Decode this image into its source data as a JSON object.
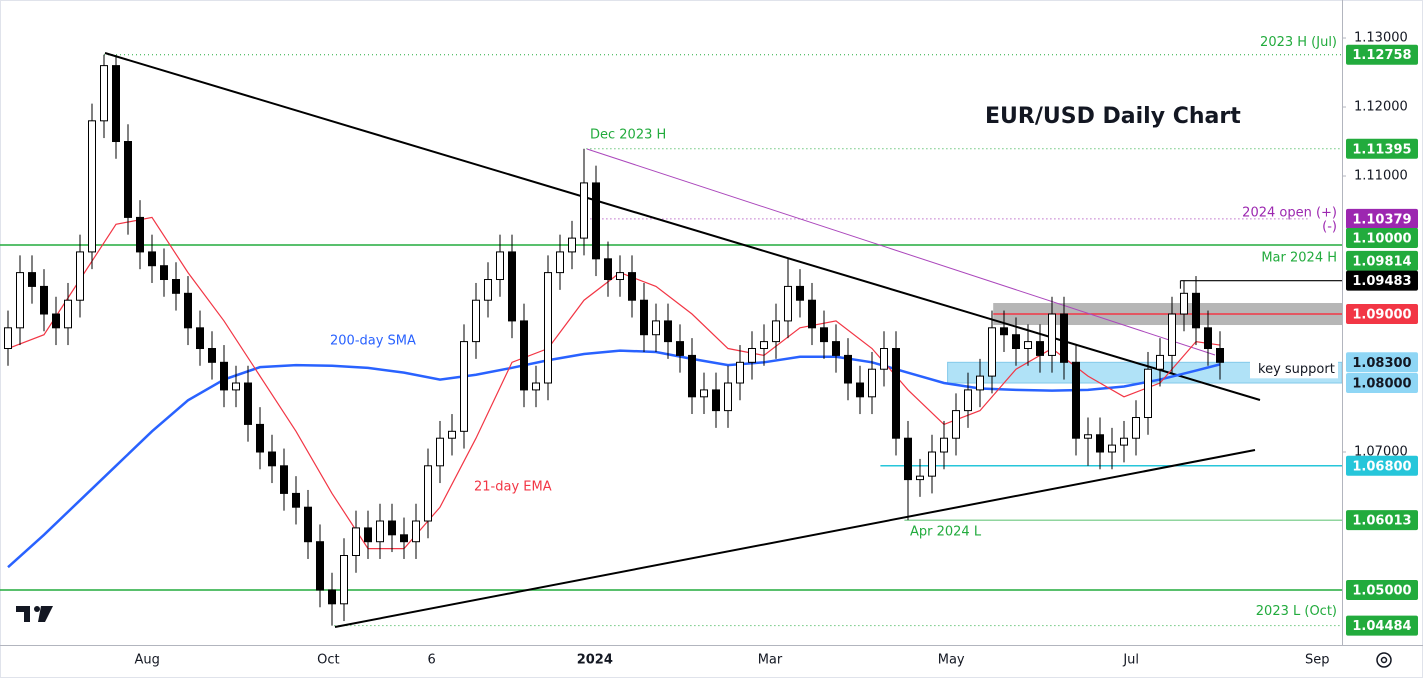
{
  "chart_data": {
    "type": "candlestick",
    "title": "EUR/USD Daily Chart",
    "xlim": [
      -0.6667,
      111.1667
    ],
    "ylim": [
      1.04203,
      1.13551
    ],
    "xticks": [
      {
        "value": 11.6,
        "label": "Aug"
      },
      {
        "value": 26.7,
        "label": "Oct"
      },
      {
        "value": 35.3,
        "label": "6"
      },
      {
        "value": 48.9,
        "label": "2024"
      },
      {
        "value": 63.5,
        "label": "Mar"
      },
      {
        "value": 78.6,
        "label": "May"
      },
      {
        "value": 93.6,
        "label": "Jul"
      },
      {
        "value": 109.1,
        "label": "Sep"
      }
    ],
    "yticks": [
      {
        "value": 1.13,
        "label": "1.13000"
      },
      {
        "value": 1.12,
        "label": "1.12000"
      },
      {
        "value": 1.11,
        "label": "1.11000"
      },
      {
        "value": 1.07,
        "label": "1.07000"
      }
    ],
    "ohlc": [
      [
        1.085,
        1.0905,
        1.0825,
        1.088
      ],
      [
        1.088,
        1.0985,
        1.0855,
        1.096
      ],
      [
        1.096,
        1.0985,
        1.0915,
        1.094
      ],
      [
        1.094,
        1.0965,
        1.0875,
        1.09
      ],
      [
        1.09,
        1.0925,
        1.0855,
        1.088
      ],
      [
        1.088,
        1.0945,
        1.0855,
        1.092
      ],
      [
        1.092,
        1.1015,
        1.0895,
        1.099
      ],
      [
        1.099,
        1.1205,
        1.0965,
        1.118
      ],
      [
        1.118,
        1.12758,
        1.1155,
        1.126
      ],
      [
        1.126,
        1.1275,
        1.1125,
        1.115
      ],
      [
        1.115,
        1.1175,
        1.1015,
        1.104
      ],
      [
        1.104,
        1.1065,
        1.0965,
        1.099
      ],
      [
        1.099,
        1.1015,
        1.0945,
        1.097
      ],
      [
        1.097,
        1.0995,
        1.0925,
        1.095
      ],
      [
        1.095,
        1.0975,
        1.0905,
        1.093
      ],
      [
        1.093,
        1.0955,
        1.0855,
        1.088
      ],
      [
        1.088,
        1.0905,
        1.0825,
        1.085
      ],
      [
        1.085,
        1.0875,
        1.0805,
        1.083
      ],
      [
        1.083,
        1.0855,
        1.0765,
        1.079
      ],
      [
        1.079,
        1.0825,
        1.0765,
        1.08
      ],
      [
        1.08,
        1.0825,
        1.0715,
        1.074
      ],
      [
        1.074,
        1.0765,
        1.0675,
        1.07
      ],
      [
        1.07,
        1.0725,
        1.0655,
        1.068
      ],
      [
        1.068,
        1.0705,
        1.0615,
        1.064
      ],
      [
        1.064,
        1.0665,
        1.0595,
        1.062
      ],
      [
        1.062,
        1.0645,
        1.0545,
        1.057
      ],
      [
        1.057,
        1.0595,
        1.0475,
        1.05
      ],
      [
        1.05,
        1.0525,
        1.04484,
        1.048
      ],
      [
        1.048,
        1.0575,
        1.0455,
        1.055
      ],
      [
        1.055,
        1.0615,
        1.0525,
        1.059
      ],
      [
        1.059,
        1.0615,
        1.0545,
        1.057
      ],
      [
        1.057,
        1.0625,
        1.0545,
        1.06
      ],
      [
        1.06,
        1.0625,
        1.0555,
        1.058
      ],
      [
        1.058,
        1.0605,
        1.0545,
        1.057
      ],
      [
        1.057,
        1.0625,
        1.0545,
        1.06
      ],
      [
        1.06,
        1.0705,
        1.0575,
        1.068
      ],
      [
        1.068,
        1.0745,
        1.0655,
        1.072
      ],
      [
        1.072,
        1.0755,
        1.0695,
        1.073
      ],
      [
        1.073,
        1.0885,
        1.0705,
        1.086
      ],
      [
        1.086,
        1.0945,
        1.0835,
        1.092
      ],
      [
        1.092,
        1.0975,
        1.0895,
        1.095
      ],
      [
        1.095,
        1.1015,
        1.0925,
        1.099
      ],
      [
        1.099,
        1.1015,
        1.0865,
        1.089
      ],
      [
        1.089,
        1.0915,
        1.0765,
        1.079
      ],
      [
        1.079,
        1.0825,
        1.0765,
        1.08
      ],
      [
        1.08,
        1.0985,
        1.0775,
        1.096
      ],
      [
        1.096,
        1.1015,
        1.0935,
        1.099
      ],
      [
        1.099,
        1.1035,
        1.0965,
        1.101
      ],
      [
        1.101,
        1.11395,
        1.0985,
        1.109
      ],
      [
        1.109,
        1.1115,
        1.0955,
        1.098
      ],
      [
        1.098,
        1.1005,
        1.0925,
        1.095
      ],
      [
        1.095,
        1.0985,
        1.0925,
        1.096
      ],
      [
        1.096,
        1.0985,
        1.0895,
        1.092
      ],
      [
        1.092,
        1.0945,
        1.0845,
        1.087
      ],
      [
        1.087,
        1.0915,
        1.0845,
        1.089
      ],
      [
        1.089,
        1.0915,
        1.0835,
        1.086
      ],
      [
        1.086,
        1.0885,
        1.0815,
        1.084
      ],
      [
        1.084,
        1.0865,
        1.0755,
        1.078
      ],
      [
        1.078,
        1.0815,
        1.0755,
        1.079
      ],
      [
        1.079,
        1.0815,
        1.0735,
        1.076
      ],
      [
        1.076,
        1.0825,
        1.0735,
        1.08
      ],
      [
        1.08,
        1.0855,
        1.0775,
        1.083
      ],
      [
        1.083,
        1.0875,
        1.0805,
        1.085
      ],
      [
        1.085,
        1.0885,
        1.0825,
        1.086
      ],
      [
        1.086,
        1.0915,
        1.0835,
        1.089
      ],
      [
        1.089,
        1.09814,
        1.0865,
        1.094
      ],
      [
        1.094,
        1.0965,
        1.0895,
        1.092
      ],
      [
        1.092,
        1.0945,
        1.0855,
        1.088
      ],
      [
        1.088,
        1.0905,
        1.0835,
        1.086
      ],
      [
        1.086,
        1.0885,
        1.0815,
        1.084
      ],
      [
        1.084,
        1.0865,
        1.0775,
        1.08
      ],
      [
        1.08,
        1.0825,
        1.0755,
        1.078
      ],
      [
        1.078,
        1.0845,
        1.0755,
        1.082
      ],
      [
        1.082,
        1.0875,
        1.0795,
        1.085
      ],
      [
        1.085,
        1.0875,
        1.0695,
        1.072
      ],
      [
        1.072,
        1.0745,
        1.06013,
        1.066
      ],
      [
        1.066,
        1.069,
        1.0635,
        1.0665
      ],
      [
        1.0665,
        1.0725,
        1.064,
        1.07
      ],
      [
        1.07,
        1.0745,
        1.0675,
        1.072
      ],
      [
        1.072,
        1.0785,
        1.0695,
        1.076
      ],
      [
        1.076,
        1.0815,
        1.0735,
        1.079
      ],
      [
        1.079,
        1.0835,
        1.0765,
        1.081
      ],
      [
        1.081,
        1.0905,
        1.0785,
        1.088
      ],
      [
        1.088,
        1.0905,
        1.0845,
        1.087
      ],
      [
        1.087,
        1.0895,
        1.0825,
        1.085
      ],
      [
        1.085,
        1.0885,
        1.0825,
        1.086
      ],
      [
        1.086,
        1.0885,
        1.0815,
        1.084
      ],
      [
        1.084,
        1.0925,
        1.0815,
        1.09
      ],
      [
        1.09,
        1.0925,
        1.0805,
        1.083
      ],
      [
        1.083,
        1.0855,
        1.0695,
        1.072
      ],
      [
        1.072,
        1.075,
        1.068,
        1.0725
      ],
      [
        1.0725,
        1.075,
        1.0675,
        1.07
      ],
      [
        1.07,
        1.0735,
        1.0675,
        1.071
      ],
      [
        1.071,
        1.0745,
        1.0685,
        1.072
      ],
      [
        1.072,
        1.0775,
        1.0695,
        1.075
      ],
      [
        1.075,
        1.0845,
        1.0725,
        1.082
      ],
      [
        1.082,
        1.0865,
        1.0795,
        1.084
      ],
      [
        1.084,
        1.0925,
        1.0815,
        1.09
      ],
      [
        1.09,
        1.09483,
        1.0875,
        1.093
      ],
      [
        1.093,
        1.0955,
        1.0855,
        1.088
      ],
      [
        1.088,
        1.0905,
        1.0825,
        1.085
      ],
      [
        1.085,
        1.0875,
        1.0805,
        1.083
      ]
    ],
    "series": [
      {
        "name": "200-day SMA",
        "color": "#2962ff",
        "x": [
          0,
          3,
          6,
          9,
          12,
          15,
          18,
          21,
          24,
          27,
          30,
          33,
          36,
          39,
          42,
          45,
          48,
          51,
          54,
          57,
          60,
          63,
          66,
          69,
          72,
          75,
          78,
          81,
          84,
          87,
          90,
          93,
          96,
          99,
          101
        ],
        "values": [
          1.0533,
          1.058,
          1.063,
          1.068,
          1.073,
          1.0775,
          1.0805,
          1.0823,
          1.0826,
          1.0825,
          1.0822,
          1.0815,
          1.0805,
          1.0812,
          1.0822,
          1.0833,
          1.0842,
          1.0847,
          1.0845,
          1.0835,
          1.0826,
          1.083,
          1.0838,
          1.0838,
          1.083,
          1.0815,
          1.08,
          1.0792,
          1.079,
          1.0789,
          1.079,
          1.0795,
          1.0805,
          1.0818,
          1.0827
        ]
      },
      {
        "name": "21-day EMA",
        "color": "#f23645",
        "x": [
          0,
          3,
          6,
          9,
          12,
          15,
          18,
          21,
          24,
          27,
          30,
          33,
          36,
          39,
          42,
          45,
          48,
          51,
          54,
          57,
          60,
          63,
          66,
          69,
          72,
          75,
          78,
          81,
          84,
          87,
          90,
          93,
          96,
          99,
          101
        ],
        "values": [
          1.085,
          1.087,
          1.095,
          1.103,
          1.104,
          1.096,
          1.089,
          1.081,
          1.073,
          1.064,
          1.056,
          1.056,
          1.062,
          1.072,
          1.083,
          1.085,
          1.092,
          1.096,
          1.094,
          1.09,
          1.085,
          1.084,
          1.088,
          1.089,
          1.085,
          1.079,
          1.074,
          1.076,
          1.082,
          1.085,
          1.081,
          1.078,
          1.08,
          1.086,
          1.0855
        ]
      }
    ],
    "levels": [
      {
        "value": 1.12758,
        "label": "1.12758",
        "color": "#22ab3d",
        "text": "2023 H (Jul)"
      },
      {
        "value": 1.11395,
        "label": "1.11395",
        "color": "#22ab3d",
        "text": "Dec 2023 H"
      },
      {
        "value": 1.10379,
        "label": "1.10379",
        "color": "#9c27b0",
        "text": "2024 open (+)"
      },
      {
        "value": 1.1,
        "label": "1.10000",
        "color": "#22ab3d"
      },
      {
        "value": 1.09814,
        "label": "1.09814",
        "color": "#22ab3d",
        "text": "Mar 2024 H"
      },
      {
        "value": 1.09483,
        "label": "1.09483",
        "color": "#000000"
      },
      {
        "value": 1.09,
        "label": "1.09000",
        "color": "#f23645"
      },
      {
        "value": 1.083,
        "label": "1.08300",
        "color": "#8fd6f5",
        "text": "key support"
      },
      {
        "value": 1.08,
        "label": "1.08000",
        "color": "#8fd6f5"
      },
      {
        "value": 1.068,
        "label": "1.06800",
        "color": "#26c6da"
      },
      {
        "value": 1.06013,
        "label": "1.06013",
        "color": "#22ab3d",
        "text": "Apr 2024 L"
      },
      {
        "value": 1.05,
        "label": "1.05000",
        "color": "#22ab3d"
      },
      {
        "value": 1.04484,
        "label": "1.04484",
        "color": "#22ab3d",
        "text": "2023 L (Oct)"
      }
    ],
    "annotations": [
      "(-)"
    ]
  }
}
